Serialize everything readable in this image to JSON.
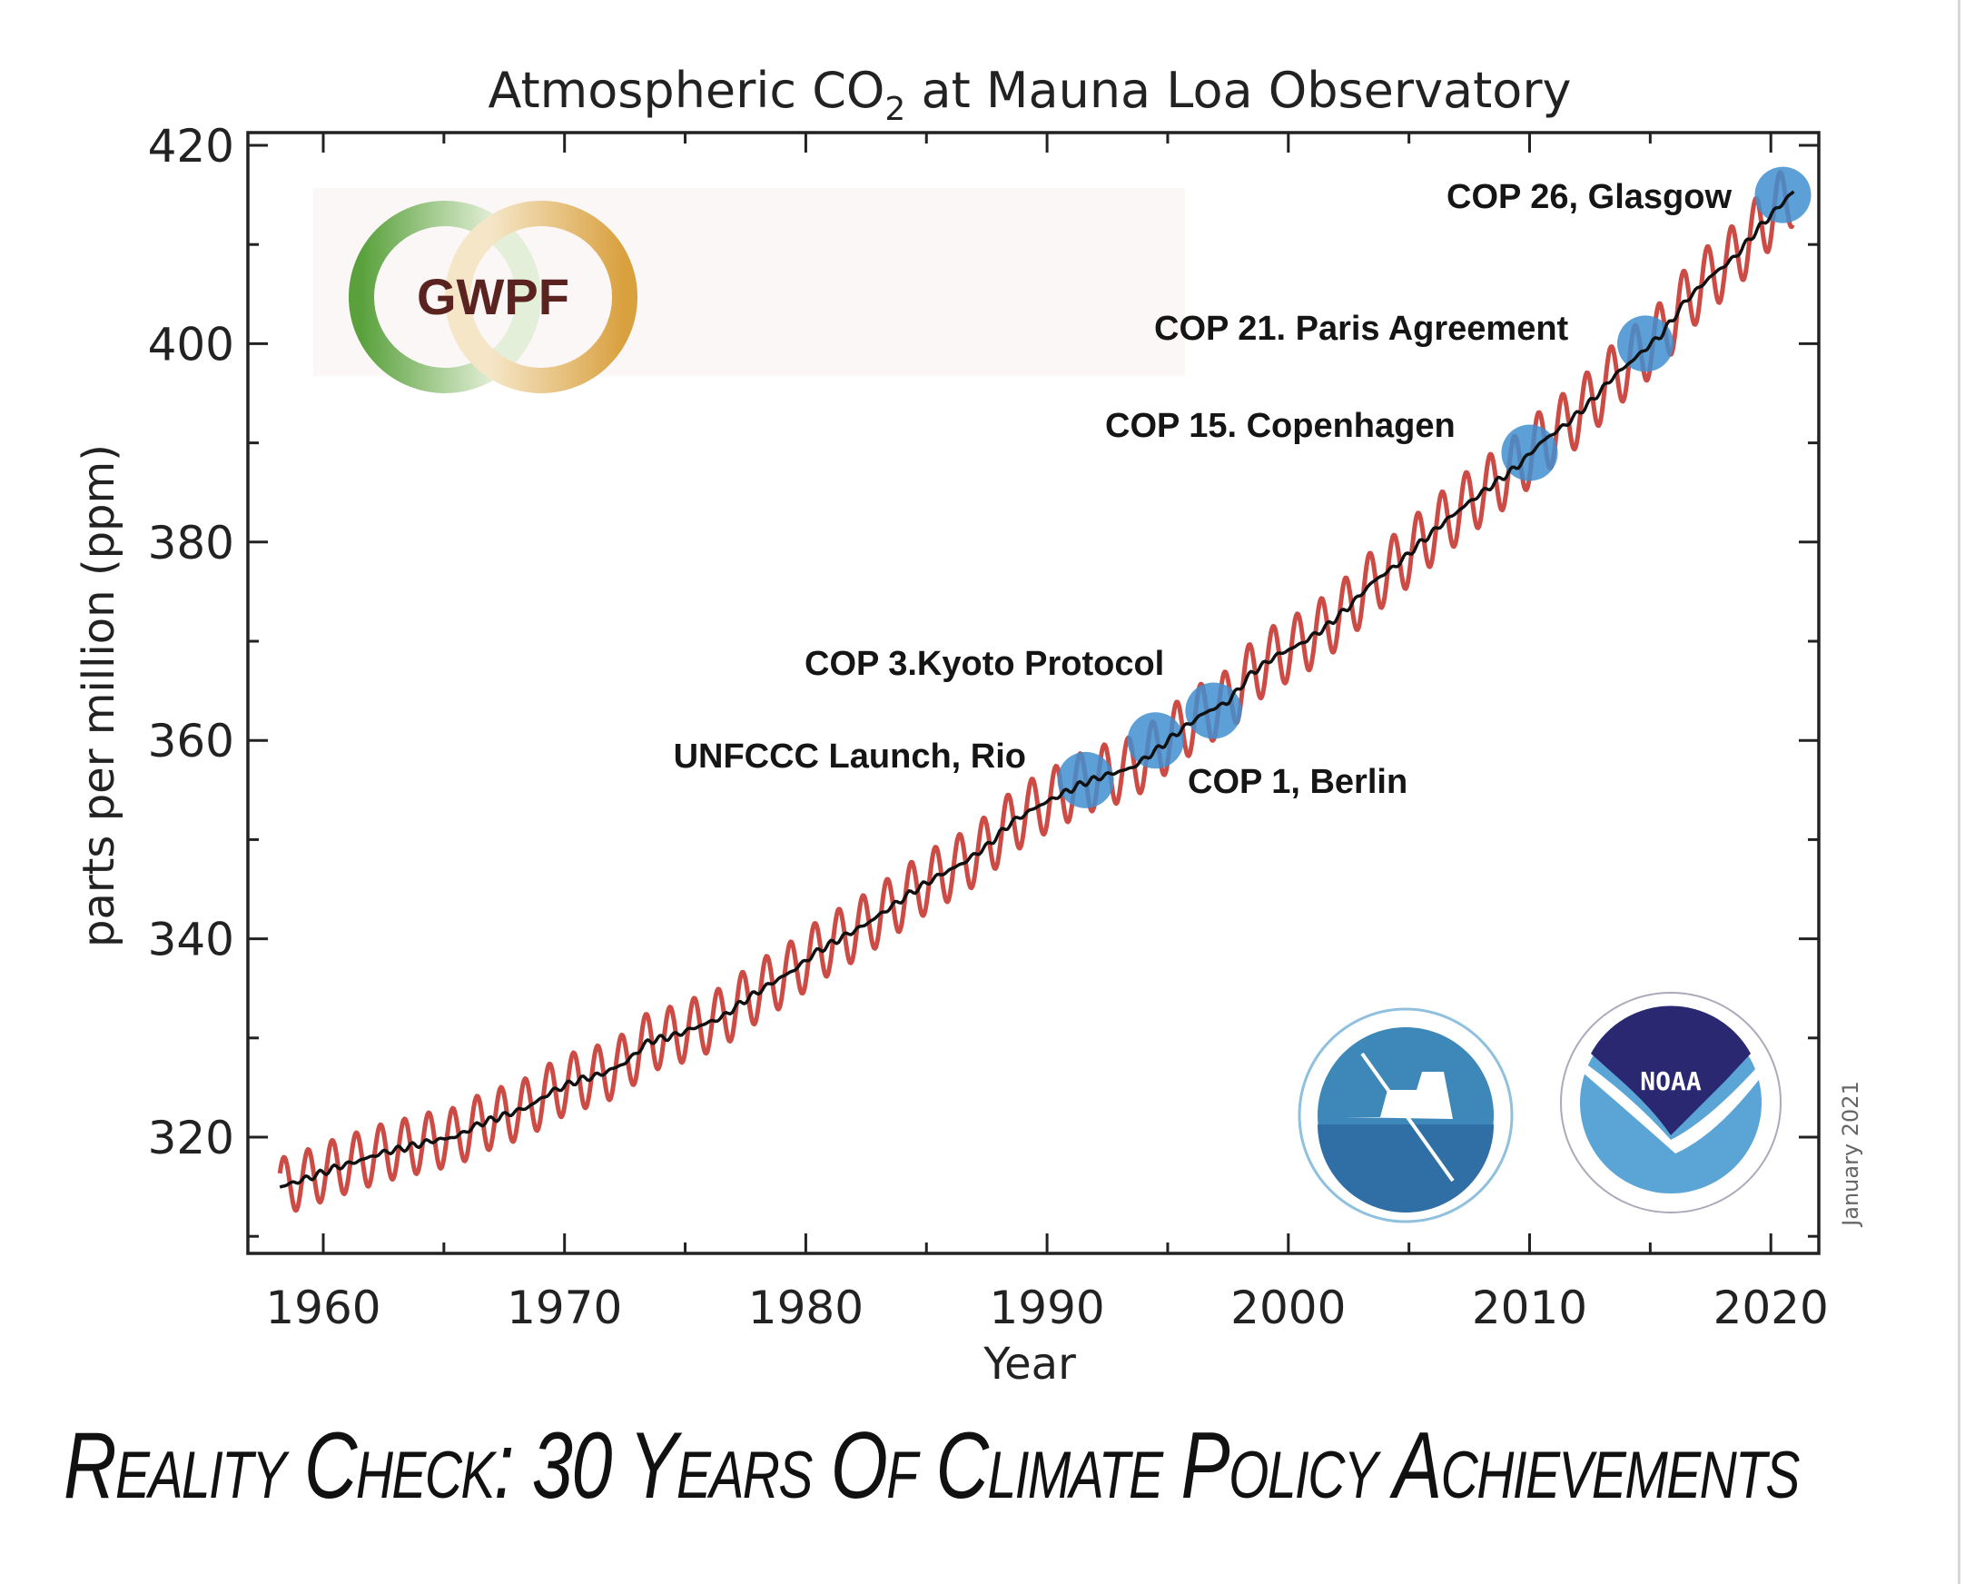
{
  "chart_data": {
    "type": "line",
    "title": "Atmospheric CO₂ at Mauna Loa Observatory",
    "title_main": "Atmospheric CO",
    "title_sub": "2",
    "title_rest": " at Mauna Loa Observatory",
    "xlabel": "Year",
    "ylabel": "parts per million (ppm)",
    "xlim": [
      1957,
      2022
    ],
    "ylim": [
      308,
      421
    ],
    "xticks": [
      1960,
      1970,
      1980,
      1990,
      2000,
      2010,
      2020
    ],
    "yticks": [
      320,
      340,
      360,
      380,
      400,
      420
    ],
    "grid": false,
    "date_note": "January 2021",
    "series": [
      {
        "kind": "annual-mean",
        "color": "#111111",
        "x": [
          1958,
          1959,
          1960,
          1961,
          1962,
          1963,
          1964,
          1965,
          1966,
          1967,
          1968,
          1969,
          1970,
          1971,
          1972,
          1973,
          1974,
          1975,
          1976,
          1977,
          1978,
          1979,
          1980,
          1981,
          1982,
          1983,
          1984,
          1985,
          1986,
          1987,
          1988,
          1989,
          1990,
          1991,
          1992,
          1993,
          1994,
          1995,
          1996,
          1997,
          1998,
          1999,
          2000,
          2001,
          2002,
          2003,
          2004,
          2005,
          2006,
          2007,
          2008,
          2009,
          2010,
          2011,
          2012,
          2013,
          2014,
          2015,
          2016,
          2017,
          2018,
          2019,
          2020
        ],
        "values": [
          315.2,
          315.98,
          316.91,
          317.64,
          318.45,
          318.99,
          319.62,
          320.04,
          321.37,
          322.18,
          323.05,
          324.62,
          325.68,
          326.32,
          327.46,
          329.68,
          330.19,
          331.13,
          332.03,
          333.84,
          335.41,
          336.84,
          338.76,
          340.12,
          341.48,
          343.15,
          344.87,
          346.35,
          347.61,
          349.31,
          351.69,
          353.2,
          354.45,
          355.7,
          356.54,
          357.21,
          358.96,
          360.97,
          362.74,
          363.88,
          366.84,
          368.54,
          369.71,
          371.32,
          373.45,
          375.98,
          377.7,
          379.98,
          382.09,
          384.02,
          385.83,
          387.64,
          390.1,
          391.85,
          394.06,
          396.74,
          398.81,
          401.01,
          404.41,
          406.76,
          408.72,
          411.66,
          414.24
        ]
      },
      {
        "kind": "monthly-seasonal",
        "color": "#cc4b45",
        "seasonal_amplitude_ppm": 3.2
      }
    ],
    "annotations": [
      {
        "label": "UNFCCC Launch, Rio",
        "year": 1991.6,
        "ppm": 356
      },
      {
        "label": "COP 1, Berlin",
        "year": 1994.5,
        "ppm": 360
      },
      {
        "label": "COP 3.Kyoto Protocol",
        "year": 1996.9,
        "ppm": 363
      },
      {
        "label": "COP 15. Copenhagen",
        "year": 2010.0,
        "ppm": 389
      },
      {
        "label": "COP 21. Paris Agreement",
        "year": 2014.8,
        "ppm": 400
      },
      {
        "label": "COP 26, Glasgow",
        "year": 2020.5,
        "ppm": 415
      }
    ],
    "marker_color": "#3f8fd0"
  },
  "logos": {
    "gwpf": "GWPF",
    "noaa": "NOAA"
  },
  "headline": "Reality Check: 30 Years Of Climate Policy Achievements"
}
